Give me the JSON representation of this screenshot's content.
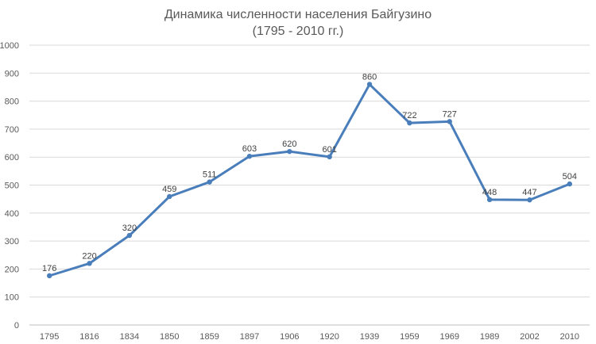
{
  "title_line1": "Динамика численности населения Байгузино",
  "title_line2": "(1795 - 2010 гг.)",
  "chart_data": {
    "type": "line",
    "title": "Динамика численности населения Байгузино (1795 - 2010 гг.)",
    "categories": [
      "1795",
      "1816",
      "1834",
      "1850",
      "1859",
      "1897",
      "1906",
      "1920",
      "1939",
      "1959",
      "1969",
      "1989",
      "2002",
      "2010"
    ],
    "series": [
      {
        "values": [
          176,
          220,
          320,
          459,
          511,
          603,
          620,
          601,
          860,
          722,
          727,
          448,
          447,
          504
        ],
        "color": "#4a7ebb"
      }
    ],
    "yticks": [
      0,
      100,
      200,
      300,
      400,
      500,
      600,
      700,
      800,
      900,
      1000
    ],
    "ylim": [
      0,
      1000
    ],
    "grid": true,
    "data_labels": true,
    "legend": "none"
  }
}
